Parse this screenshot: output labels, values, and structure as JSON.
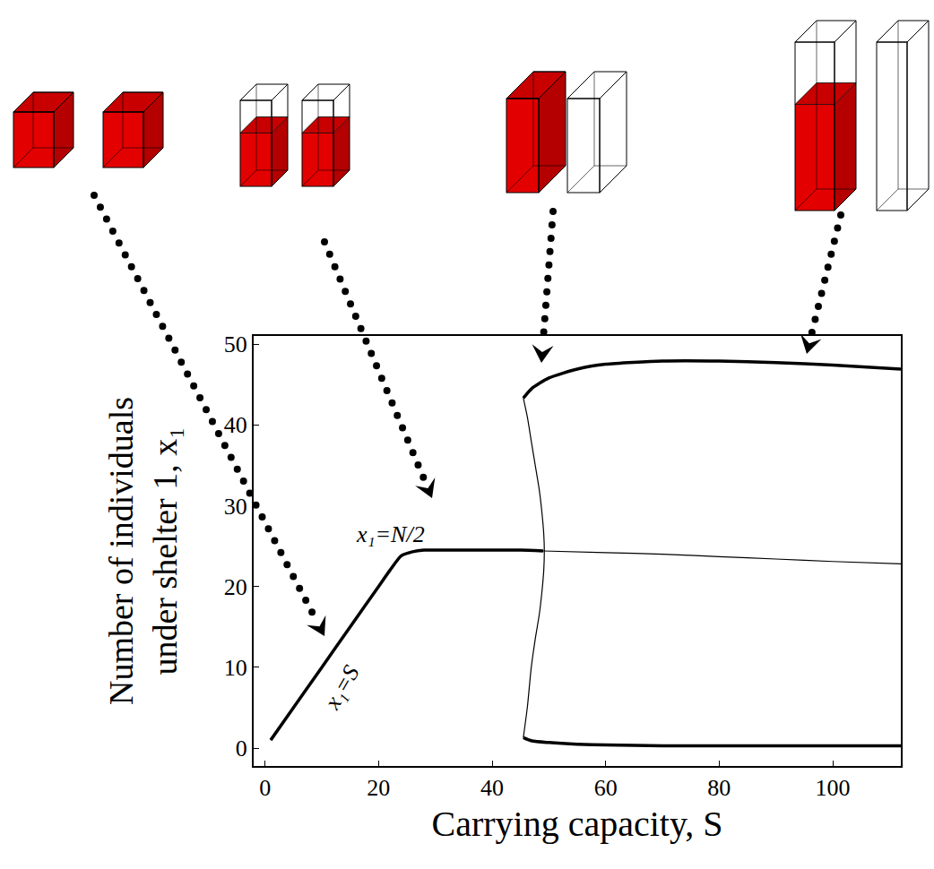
{
  "chart_data": {
    "type": "line",
    "xlabel": "Carrying capacity, S",
    "ylabel": "Number of individuals under shelter 1, x₁",
    "xlim": [
      -2,
      112
    ],
    "ylim": [
      -2.2,
      51
    ],
    "xticks": [
      0,
      20,
      40,
      60,
      80,
      100
    ],
    "yticks": [
      0,
      10,
      20,
      30,
      40,
      50
    ],
    "grid": false,
    "series": [
      {
        "color": "#000000",
        "line_style": "thick",
        "x": [
          1,
          5,
          10,
          15,
          20,
          22,
          24,
          26,
          28,
          30,
          35,
          40,
          45,
          49
        ],
        "values": [
          1,
          5,
          10,
          15,
          20,
          22,
          23.8,
          24.3,
          24.5,
          24.5,
          24.5,
          24.5,
          24.5,
          24.4
        ]
      },
      {
        "color": "#000000",
        "line_style": "thin",
        "x": [
          49,
          60,
          70,
          80,
          90,
          100,
          112
        ],
        "values": [
          24.4,
          24.2,
          24.0,
          23.7,
          23.4,
          23.1,
          22.8
        ]
      },
      {
        "color": "#000000",
        "line_style": "thick",
        "x": [
          45.5,
          47,
          50,
          55,
          60,
          70,
          80,
          90,
          100,
          112
        ],
        "values": [
          43.3,
          44.5,
          45.8,
          46.9,
          47.5,
          47.9,
          47.9,
          47.7,
          47.4,
          46.9
        ]
      },
      {
        "color": "#000000",
        "line_style": "thick",
        "x": [
          45.5,
          47,
          50,
          55,
          60,
          70,
          80,
          90,
          100,
          112
        ],
        "values": [
          1.3,
          0.9,
          0.7,
          0.5,
          0.4,
          0.3,
          0.3,
          0.3,
          0.3,
          0.3
        ]
      },
      {
        "color": "#000000",
        "line_style": "thin",
        "x": [
          45.5,
          46.2,
          46.9,
          47.6,
          48.3,
          48.8,
          49.1,
          49.2,
          49.1,
          48.8,
          48.3,
          47.6,
          46.9,
          46.2,
          45.5
        ],
        "values": [
          43.3,
          41,
          38,
          35,
          32,
          29,
          26.5,
          24.4,
          22,
          19.5,
          16.5,
          13.5,
          10,
          5,
          1.3
        ]
      }
    ],
    "annotations": [
      {
        "text": "x₁=N/2",
        "x": 22,
        "y": 26.5
      },
      {
        "text": "x₁=S",
        "x": 13.5,
        "y": 7.5
      }
    ]
  }
}
